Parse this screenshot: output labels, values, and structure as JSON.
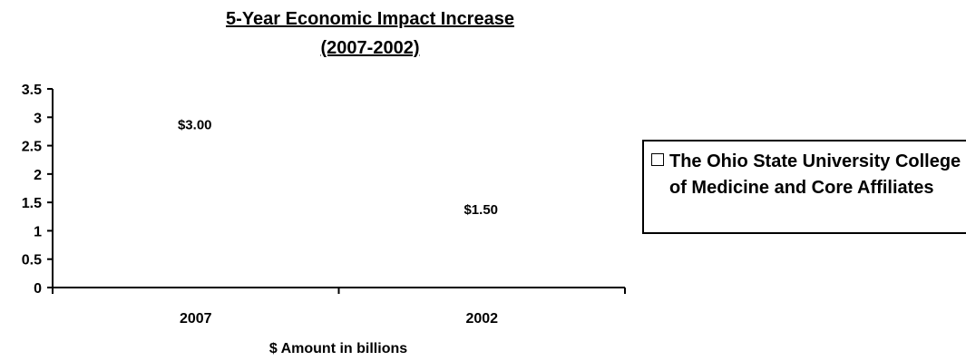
{
  "chart_data": {
    "type": "bar",
    "title": "5-Year Economic Impact Increase",
    "subtitle": "(2007-2002)",
    "categories": [
      "2007",
      "2002"
    ],
    "series": [
      {
        "name": "The Ohio State University College of Medicine and Core Affiliates",
        "values": [
          3.0,
          1.5
        ],
        "data_labels": [
          "$3.00",
          "$1.50"
        ],
        "color": "#ffffff"
      }
    ],
    "xlabel": "$ Amount in billions",
    "ylabel": "",
    "ylim": [
      0,
      3.5
    ],
    "yticks": [
      0,
      0.5,
      1,
      1.5,
      2,
      2.5,
      3,
      3.5
    ],
    "ytick_labels": [
      "0",
      "0.5",
      "1",
      "1.5",
      "2",
      "2.5",
      "3",
      "3.5"
    ],
    "grid": false,
    "legend_position": "right"
  }
}
